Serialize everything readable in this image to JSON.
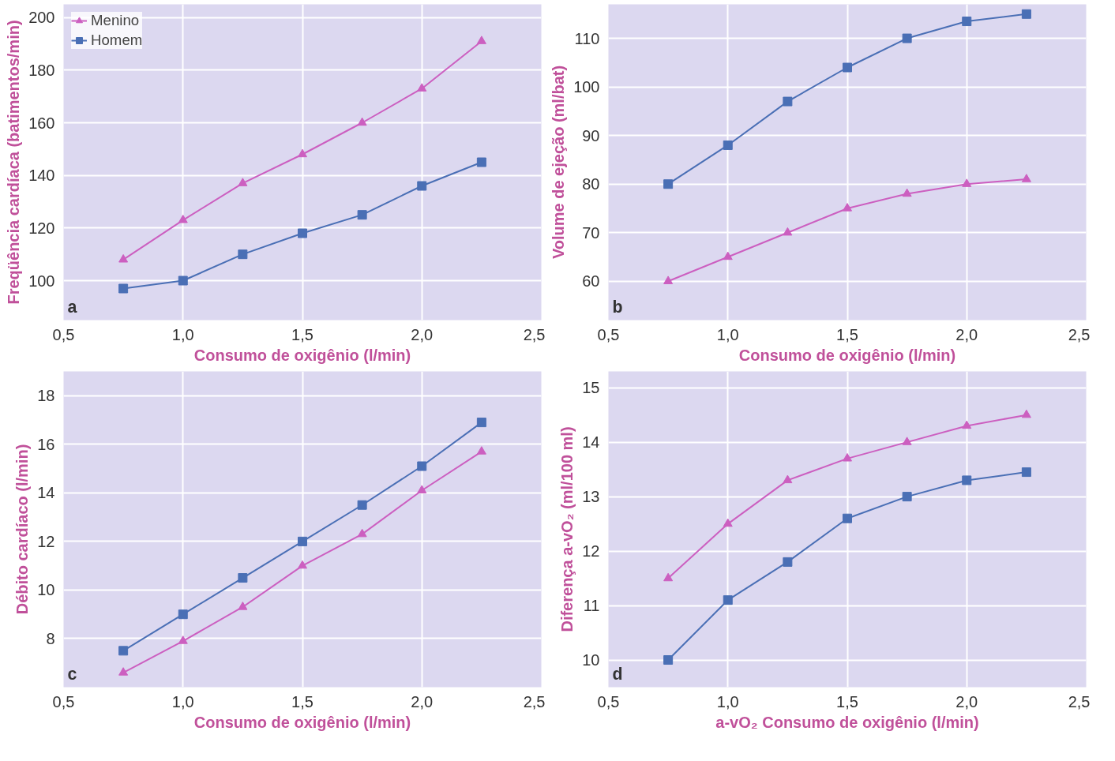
{
  "chart_data": [
    {
      "type": "line",
      "annotations": [
        "a"
      ],
      "xlabel": "Consumo de oxigênio (l/min)",
      "ylabel": "Freqüência cardíaca (batimentos/min)",
      "x": [
        0.75,
        1.0,
        1.25,
        1.5,
        1.75,
        2.0,
        2.25
      ],
      "xlim": [
        0.5,
        2.5
      ],
      "xticks": [
        {
          "value": 0.5,
          "label": "0,5"
        },
        {
          "value": 1.0,
          "label": "1,0"
        },
        {
          "value": 1.5,
          "label": "1,5"
        },
        {
          "value": 2.0,
          "label": "2,0"
        },
        {
          "value": 2.5,
          "label": "2,5"
        }
      ],
      "ylim": [
        85,
        205
      ],
      "yticks": [
        100,
        120,
        140,
        160,
        180,
        200
      ],
      "grid": true,
      "legend": "top left",
      "series": [
        {
          "name": "Menino",
          "color": "#cc5fc0",
          "marker": "triangle",
          "values": [
            108,
            123,
            137,
            148,
            160,
            173,
            191
          ]
        },
        {
          "name": "Homem",
          "color": "#4a6fb5",
          "marker": "square",
          "values": [
            97,
            100,
            110,
            118,
            125,
            136,
            145
          ]
        }
      ]
    },
    {
      "type": "line",
      "annotations": [
        "b"
      ],
      "xlabel": "Consumo de oxigênio (l/min)",
      "ylabel": "Volume de ejeção (ml/bat)",
      "x": [
        0.75,
        1.0,
        1.25,
        1.5,
        1.75,
        2.0,
        2.25
      ],
      "xlim": [
        0.5,
        2.5
      ],
      "xticks": [
        {
          "value": 0.5,
          "label": "0,5"
        },
        {
          "value": 1.0,
          "label": "1,0"
        },
        {
          "value": 1.5,
          "label": "1,5"
        },
        {
          "value": 2.0,
          "label": "2,0"
        },
        {
          "value": 2.5,
          "label": "2,5"
        }
      ],
      "ylim": [
        52,
        117
      ],
      "yticks": [
        60,
        70,
        80,
        90,
        100,
        110
      ],
      "grid": true,
      "series": [
        {
          "color": "#cc5fc0",
          "marker": "triangle",
          "values": [
            60,
            65,
            70,
            75,
            78,
            80,
            81
          ]
        },
        {
          "color": "#4a6fb5",
          "marker": "square",
          "values": [
            80,
            88,
            97,
            104,
            110,
            113.5,
            115
          ]
        }
      ]
    },
    {
      "type": "line",
      "annotations": [
        "c"
      ],
      "xlabel": "Consumo de oxigênio (l/min)",
      "ylabel": "Débito cardíaco (l/min)",
      "x": [
        0.75,
        1.0,
        1.25,
        1.5,
        1.75,
        2.0,
        2.25
      ],
      "xlim": [
        0.5,
        2.5
      ],
      "xticks": [
        {
          "value": 0.5,
          "label": "0,5"
        },
        {
          "value": 1.0,
          "label": "1,0"
        },
        {
          "value": 1.5,
          "label": "1,5"
        },
        {
          "value": 2.0,
          "label": "2,0"
        },
        {
          "value": 2.5,
          "label": "2,5"
        }
      ],
      "ylim": [
        6,
        19
      ],
      "yticks": [
        8,
        10,
        12,
        14,
        16,
        18
      ],
      "grid": true,
      "series": [
        {
          "color": "#cc5fc0",
          "marker": "triangle",
          "values": [
            6.6,
            7.9,
            9.3,
            11.0,
            12.3,
            14.1,
            15.7
          ]
        },
        {
          "color": "#4a6fb5",
          "marker": "square",
          "values": [
            7.5,
            9.0,
            10.5,
            12.0,
            13.5,
            15.1,
            16.9
          ]
        }
      ]
    },
    {
      "type": "line",
      "annotations": [
        "d"
      ],
      "xlabel": "a-vO₂ Consumo de oxigênio (l/min)",
      "ylabel": "Diferença a-vO₂ (ml/100 ml)",
      "x": [
        0.75,
        1.0,
        1.25,
        1.5,
        1.75,
        2.0,
        2.25
      ],
      "xlim": [
        0.5,
        2.5
      ],
      "xticks": [
        {
          "value": 0.5,
          "label": "0,5"
        },
        {
          "value": 1.0,
          "label": "1,0"
        },
        {
          "value": 1.5,
          "label": "1,5"
        },
        {
          "value": 2.0,
          "label": "2,0"
        },
        {
          "value": 2.5,
          "label": "2,5"
        }
      ],
      "ylim": [
        9.5,
        15.3
      ],
      "yticks": [
        10,
        11,
        12,
        13,
        14,
        15
      ],
      "grid": true,
      "series": [
        {
          "color": "#cc5fc0",
          "marker": "triangle",
          "values": [
            11.5,
            12.5,
            13.3,
            13.7,
            14.0,
            14.3,
            14.5
          ]
        },
        {
          "color": "#4a6fb5",
          "marker": "square",
          "values": [
            10.0,
            11.1,
            11.8,
            12.6,
            13.0,
            13.3,
            13.45
          ]
        }
      ]
    }
  ]
}
